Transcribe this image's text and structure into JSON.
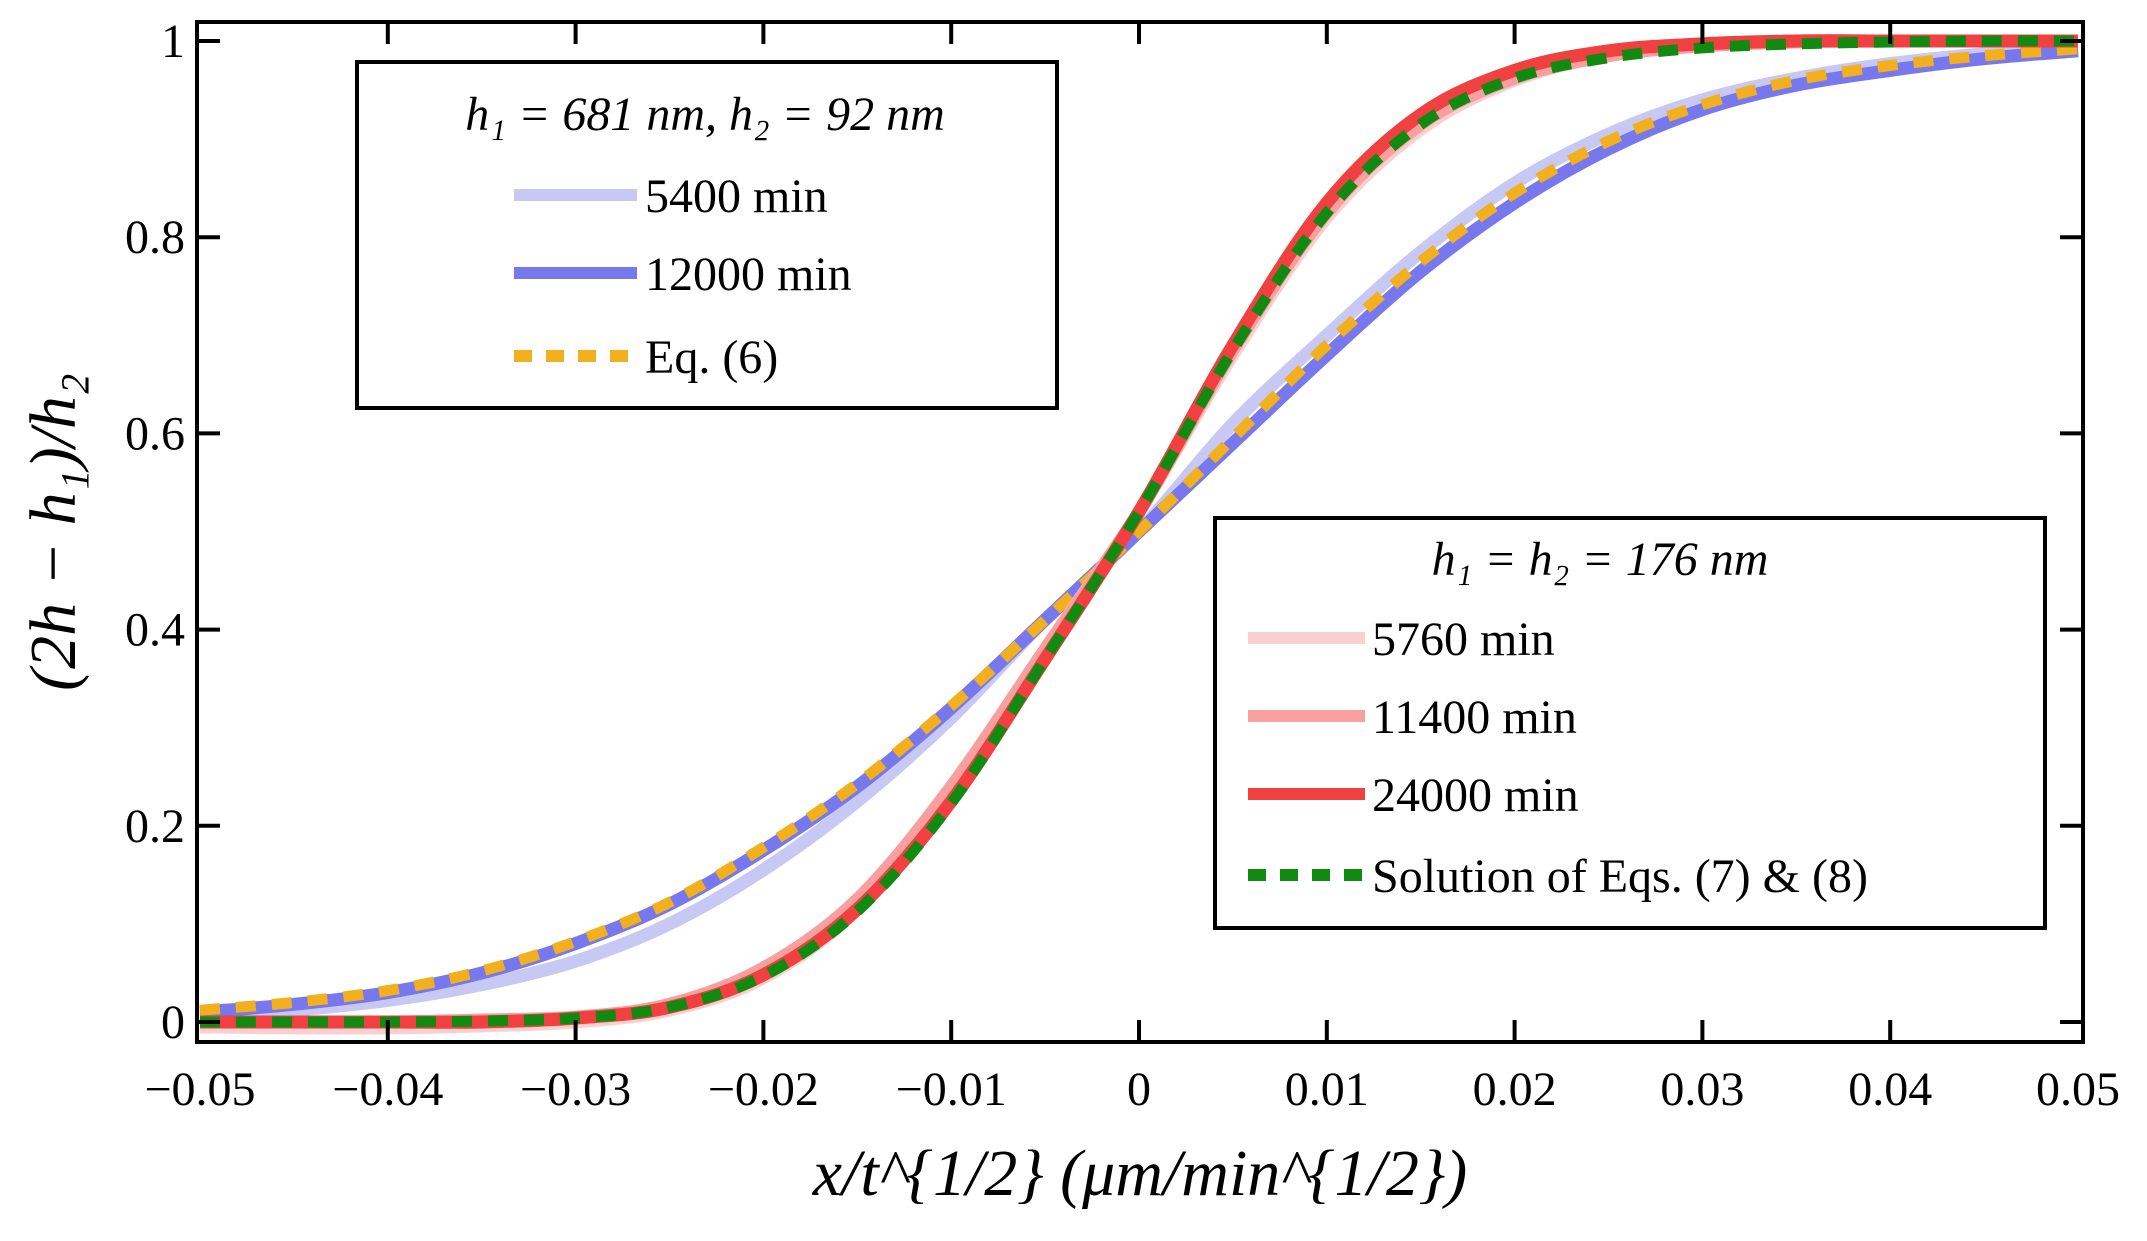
{
  "chart_data": {
    "type": "line",
    "title": "",
    "xlabel": "x/t^{1/2} (μm/min^{1/2})",
    "ylabel": "(2h − h₁)/h₂",
    "xlim": [
      -0.05,
      0.05
    ],
    "ylim": [
      0,
      1
    ],
    "xticks": [
      -0.05,
      -0.04,
      -0.03,
      -0.02,
      -0.01,
      0,
      0.01,
      0.02,
      0.03,
      0.04,
      0.05
    ],
    "xtick_labels": [
      "−0.05",
      "−0.04",
      "−0.03",
      "−0.02",
      "−0.01",
      "0",
      "0.01",
      "0.02",
      "0.03",
      "0.04",
      "0.05"
    ],
    "yticks": [
      0,
      0.2,
      0.4,
      0.6,
      0.8,
      1
    ],
    "ytick_labels": [
      "0",
      "0.2",
      "0.4",
      "0.6",
      "0.8",
      "1"
    ],
    "grid": false,
    "x": [
      -0.05,
      -0.045,
      -0.04,
      -0.035,
      -0.03,
      -0.025,
      -0.02,
      -0.015,
      -0.01,
      -0.005,
      0,
      0.005,
      0.01,
      0.015,
      0.02,
      0.025,
      0.03,
      0.035,
      0.04,
      0.045,
      0.05
    ],
    "series": [
      {
        "name": "5400 min",
        "group": "h1=681nm,h2=92nm",
        "color": "#c8c8f4",
        "style": "solid",
        "values": [
          0.005,
          0.012,
          0.022,
          0.038,
          0.062,
          0.1,
          0.155,
          0.225,
          0.31,
          0.41,
          0.5,
          0.61,
          0.7,
          0.785,
          0.855,
          0.905,
          0.94,
          0.962,
          0.977,
          0.987,
          0.993
        ]
      },
      {
        "name": "12000 min",
        "group": "h1=681nm,h2=92nm",
        "color": "#7878ee",
        "style": "solid",
        "values": [
          0.01,
          0.018,
          0.03,
          0.05,
          0.08,
          0.12,
          0.175,
          0.24,
          0.32,
          0.41,
          0.5,
          0.59,
          0.68,
          0.765,
          0.835,
          0.89,
          0.93,
          0.955,
          0.97,
          0.982,
          0.99
        ]
      },
      {
        "name": "Eq. (6)",
        "group": "h1=681nm,h2=92nm",
        "color": "#f2b01e",
        "style": "dashed",
        "values": [
          0.012,
          0.02,
          0.032,
          0.052,
          0.082,
          0.122,
          0.178,
          0.243,
          0.322,
          0.41,
          0.5,
          0.595,
          0.69,
          0.775,
          0.845,
          0.898,
          0.935,
          0.96,
          0.975,
          0.985,
          0.992
        ]
      },
      {
        "name": "5760 min",
        "group": "h1=h2=176nm",
        "color": "#f8d0d0",
        "style": "solid",
        "values": [
          -0.005,
          -0.006,
          -0.006,
          -0.004,
          0.0,
          0.012,
          0.045,
          0.115,
          0.235,
          0.38,
          0.52,
          0.68,
          0.82,
          0.91,
          0.96,
          0.985,
          0.995,
          1.0,
          1.0,
          1.0,
          1.0
        ]
      },
      {
        "name": "11400 min",
        "group": "h1=h2=176nm",
        "color": "#f8a0a0",
        "style": "solid",
        "values": [
          0.0,
          0.0,
          0.0,
          0.002,
          0.005,
          0.018,
          0.055,
          0.125,
          0.24,
          0.38,
          0.52,
          0.685,
          0.825,
          0.915,
          0.962,
          0.985,
          0.995,
          0.999,
          1.0,
          1.0,
          1.0
        ]
      },
      {
        "name": "24000 min",
        "group": "h1=h2=176nm",
        "color": "#f04040",
        "style": "solid",
        "values": [
          0.0,
          0.0,
          0.0,
          0.0,
          0.004,
          0.015,
          0.048,
          0.115,
          0.225,
          0.37,
          0.52,
          0.69,
          0.835,
          0.925,
          0.97,
          0.99,
          0.997,
          1.0,
          1.0,
          1.0,
          1.0
        ]
      },
      {
        "name": "Solution of Eqs. (7) & (8)",
        "group": "h1=h2=176nm",
        "color": "#128a12",
        "style": "dashed",
        "values": [
          0.0,
          0.0,
          0.0,
          0.001,
          0.004,
          0.015,
          0.047,
          0.113,
          0.223,
          0.37,
          0.52,
          0.685,
          0.825,
          0.915,
          0.962,
          0.983,
          0.993,
          0.997,
          0.999,
          1.0,
          1.0
        ]
      }
    ],
    "legends": [
      {
        "title": "h₁ = 681 nm,   h₂ = 92 nm",
        "placement": "top-left",
        "entries": [
          {
            "label": "5400 min",
            "color": "#c8c8f4",
            "style": "solid"
          },
          {
            "label": "12000 min",
            "color": "#7878ee",
            "style": "solid"
          },
          {
            "label": "Eq.  (6)",
            "color": "#f2b01e",
            "style": "dashed"
          }
        ]
      },
      {
        "title": "h₁ = h₂ = 176 nm",
        "placement": "lower-right",
        "entries": [
          {
            "label": "5760 min",
            "color": "#f8d0d0",
            "style": "solid"
          },
          {
            "label": "11400 min",
            "color": "#f8a0a0",
            "style": "solid"
          },
          {
            "label": "24000 min",
            "color": "#f04040",
            "style": "solid"
          },
          {
            "label": "Solution of Eqs.  (7) & (8)",
            "color": "#128a12",
            "style": "dashed"
          }
        ]
      }
    ]
  }
}
